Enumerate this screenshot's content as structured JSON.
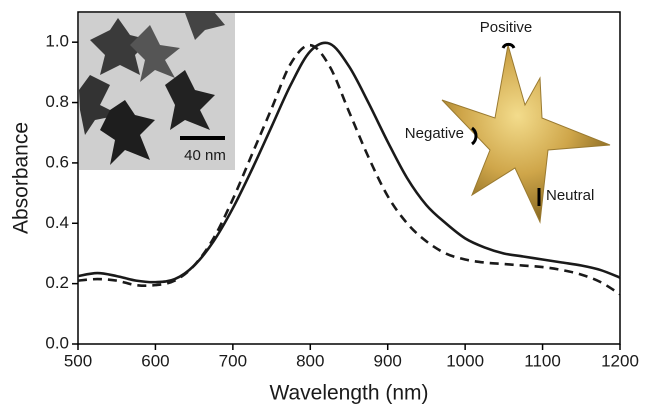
{
  "chart_data": {
    "type": "line",
    "xlabel": "Wavelength (nm)",
    "ylabel": "Absorbance",
    "x": [
      500,
      525,
      550,
      575,
      600,
      625,
      650,
      675,
      700,
      725,
      750,
      775,
      800,
      825,
      850,
      875,
      900,
      925,
      950,
      975,
      1000,
      1025,
      1050,
      1075,
      1100,
      1125,
      1150,
      1175,
      1200
    ],
    "series": [
      {
        "color": "#1a1a1a",
        "dash": false,
        "values": [
          0.225,
          0.235,
          0.225,
          0.21,
          0.205,
          0.215,
          0.26,
          0.34,
          0.45,
          0.58,
          0.72,
          0.86,
          0.97,
          0.995,
          0.92,
          0.8,
          0.67,
          0.55,
          0.46,
          0.4,
          0.35,
          0.32,
          0.3,
          0.29,
          0.28,
          0.27,
          0.26,
          0.245,
          0.22
        ]
      },
      {
        "color": "#1a1a1a",
        "dash": true,
        "values": [
          0.21,
          0.215,
          0.21,
          0.195,
          0.195,
          0.21,
          0.26,
          0.35,
          0.48,
          0.63,
          0.78,
          0.93,
          0.99,
          0.92,
          0.77,
          0.62,
          0.49,
          0.4,
          0.34,
          0.3,
          0.28,
          0.27,
          0.265,
          0.26,
          0.255,
          0.245,
          0.23,
          0.205,
          0.165
        ]
      }
    ],
    "xlim": [
      500,
      1200
    ],
    "xticks": [
      500,
      600,
      700,
      800,
      900,
      1000,
      1100,
      1200
    ],
    "ylim": [
      0,
      1.1
    ],
    "yticks": [
      {
        "value": 0,
        "label": "0.0"
      },
      0.2,
      0.4,
      0.6,
      0.8,
      {
        "value": 1,
        "label": "1.0"
      }
    ],
    "annotations": [
      "40 nm",
      "Positive",
      "Negative",
      "Neutral"
    ]
  }
}
